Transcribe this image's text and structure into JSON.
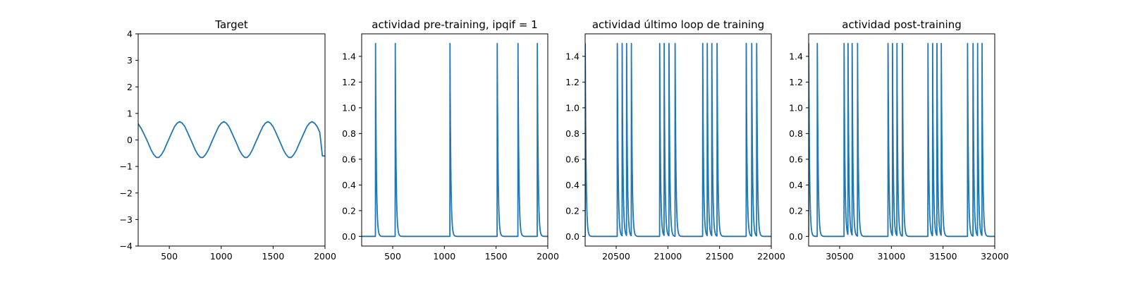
{
  "chart_data": [
    {
      "type": "line",
      "title": "Target",
      "xlim": [
        200,
        2000
      ],
      "ylim": [
        -4,
        4
      ],
      "xticks": [
        500,
        1000,
        1500,
        2000
      ],
      "yticks": [
        -4,
        -3,
        -2,
        -1,
        0,
        1,
        2,
        3,
        4
      ],
      "series": [
        {
          "x": [
            200,
            225,
            250,
            275,
            300,
            325,
            350,
            375,
            400,
            425,
            450,
            475,
            500,
            525,
            550,
            575,
            600,
            625,
            650,
            675,
            700,
            725,
            750,
            775,
            800,
            825,
            850,
            875,
            900,
            925,
            950,
            975,
            1000,
            1025,
            1050,
            1075,
            1100,
            1125,
            1150,
            1175,
            1200,
            1225,
            1250,
            1275,
            1300,
            1325,
            1350,
            1375,
            1400,
            1425,
            1450,
            1475,
            1500,
            1525,
            1550,
            1575,
            1600,
            1625,
            1650,
            1675,
            1700,
            1725,
            1750,
            1775,
            1800,
            1825,
            1850,
            1875,
            1900,
            1925,
            1950,
            1975,
            2000
          ],
          "y": [
            0.61,
            0.46,
            0.27,
            0.07,
            -0.15,
            -0.38,
            -0.55,
            -0.66,
            -0.66,
            -0.55,
            -0.38,
            -0.15,
            0.07,
            0.29,
            0.5,
            0.63,
            0.69,
            0.63,
            0.5,
            0.29,
            0.07,
            -0.15,
            -0.38,
            -0.55,
            -0.66,
            -0.66,
            -0.55,
            -0.38,
            -0.15,
            0.07,
            0.29,
            0.5,
            0.63,
            0.69,
            0.63,
            0.5,
            0.29,
            0.07,
            -0.15,
            -0.38,
            -0.55,
            -0.66,
            -0.66,
            -0.55,
            -0.38,
            -0.15,
            0.07,
            0.29,
            0.5,
            0.63,
            0.69,
            0.63,
            0.5,
            0.29,
            0.07,
            -0.15,
            -0.38,
            -0.55,
            -0.66,
            -0.66,
            -0.55,
            -0.38,
            -0.15,
            0.07,
            0.29,
            0.5,
            0.63,
            0.69,
            0.63,
            0.5,
            0.29,
            -0.6,
            -0.6
          ]
        }
      ]
    },
    {
      "type": "line",
      "title": "actividad pre-training, ipqif = 1",
      "xlim": [
        200,
        2000
      ],
      "ylim": [
        -0.075,
        1.575
      ],
      "xticks": [
        500,
        1000,
        1500,
        2000
      ],
      "yticks": [
        "0.0",
        "0.2",
        "0.4",
        "0.6",
        "0.8",
        "1.0",
        "1.2",
        "1.4"
      ],
      "spikes": [
        333,
        524,
        1053,
        1510,
        1711,
        1898
      ],
      "peak": 1.5,
      "decay": 8
    },
    {
      "type": "line",
      "title": "actividad último loop de training",
      "xlim": [
        20200,
        22000
      ],
      "ylim": [
        -0.075,
        1.575
      ],
      "xticks": [
        20500,
        21000,
        21500,
        22000
      ],
      "yticks": [
        "0.0",
        "0.2",
        "0.4",
        "0.6",
        "0.8",
        "1.0",
        "1.2",
        "1.4"
      ],
      "spikes": [
        20200,
        20510,
        20557,
        20600,
        20646,
        20920,
        20963,
        21010,
        21069,
        21336,
        21380,
        21424,
        21475,
        21757,
        21810,
        21858
      ],
      "peak": 1.5,
      "decay": 8
    },
    {
      "type": "line",
      "title": "actividad post-training",
      "xlim": [
        30200,
        32000
      ],
      "ylim": [
        -0.075,
        1.575
      ],
      "xticks": [
        30500,
        31000,
        31500,
        32000
      ],
      "yticks": [
        "0.0",
        "0.2",
        "0.4",
        "0.6",
        "0.8",
        "1.0",
        "1.2",
        "1.4"
      ],
      "spikes": [
        30200,
        30283,
        30542,
        30580,
        30620,
        30672,
        30967,
        31010,
        31053,
        31106,
        31353,
        31398,
        31440,
        31482,
        31736,
        31789,
        31833,
        31876
      ],
      "peak": 1.5,
      "decay": 8
    }
  ],
  "colors": {
    "line": "#1f77b4",
    "axes": "#000000"
  }
}
